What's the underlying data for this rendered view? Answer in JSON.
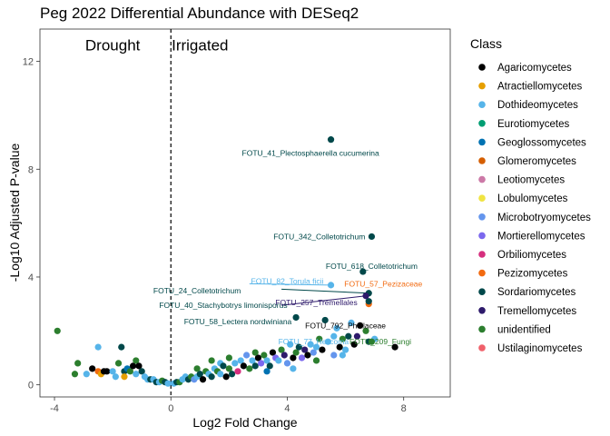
{
  "chart_data": {
    "type": "scatter",
    "title": "Peg 2022 Differential Abundance with DESeq2",
    "xlabel": "Log2 Fold Change",
    "ylabel": "-Log10 Adjusted P-value",
    "xlim": [
      -4.5,
      9.6
    ],
    "ylim": [
      -0.45,
      13.2
    ],
    "xticks": [
      -4,
      0,
      4,
      8
    ],
    "yticks": [
      0,
      4,
      8,
      12
    ],
    "vline_x": 0,
    "region_labels": [
      {
        "name": "drought",
        "text": "Drought",
        "x": -2,
        "y": 12.4
      },
      {
        "name": "irrigated",
        "text": "Irrigated",
        "x": 1,
        "y": 12.4
      }
    ],
    "legend": {
      "title": "Class",
      "entries": [
        {
          "name": "Agaricomycetes",
          "color": "#000000"
        },
        {
          "name": "Atractiellomycetes",
          "color": "#E69F00"
        },
        {
          "name": "Dothideomycetes",
          "color": "#56B4E9"
        },
        {
          "name": "Eurotiomycetes",
          "color": "#009E73"
        },
        {
          "name": "Geoglossomycetes",
          "color": "#0072B2"
        },
        {
          "name": "Glomeromycetes",
          "color": "#D55E00"
        },
        {
          "name": "Leotiomycetes",
          "color": "#CC79A7"
        },
        {
          "name": "Lobulomycetes",
          "color": "#F0E442"
        },
        {
          "name": "Microbotryomycetes",
          "color": "#6495ED"
        },
        {
          "name": "Mortierellomycetes",
          "color": "#7B68EE"
        },
        {
          "name": "Orbiliomycetes",
          "color": "#D62F7E"
        },
        {
          "name": "Pezizomycetes",
          "color": "#F26A10"
        },
        {
          "name": "Sordariomycetes",
          "color": "#00484A"
        },
        {
          "name": "Tremellomycetes",
          "color": "#2E1A6B"
        },
        {
          "name": "unidentified",
          "color": "#2C7E2E"
        },
        {
          "name": "Ustilaginomycetes",
          "color": "#F0606A"
        }
      ]
    },
    "labeled_points": [
      {
        "label": "FOTU_41_Plectosphaerella cucumerina",
        "class": "Sordariomycetes",
        "x": 5.5,
        "y": 9.1,
        "lx": 4.8,
        "ly": 8.6,
        "anchor": "middle",
        "color": "#00484A"
      },
      {
        "label": "FOTU_342_Colletotrichum",
        "class": "Sordariomycetes",
        "x": 6.9,
        "y": 5.5,
        "lx": 5.1,
        "ly": 5.5,
        "anchor": "middle",
        "color": "#00484A"
      },
      {
        "label": "FOTU_618_Colletotrichum",
        "class": "Sordariomycetes",
        "x": 6.6,
        "y": 4.2,
        "lx": 6.9,
        "ly": 4.4,
        "anchor": "middle",
        "color": "#00484A"
      },
      {
        "label": "FOTU_24_Colletotrichum",
        "class": "Sordariomycetes",
        "x": 6.8,
        "y": 3.4,
        "lx": 0.9,
        "ly": 3.5,
        "anchor": "middle",
        "color": "#00484A",
        "line_from": [
          3.8,
          3.55
        ]
      },
      {
        "label": "FOTU_82_Torula ficii",
        "class": "Dothideomycetes",
        "x": 5.5,
        "y": 3.7,
        "lx": 4.0,
        "ly": 3.85,
        "anchor": "middle",
        "color": "#56B4E9",
        "line_from": [
          2.7,
          3.75
        ]
      },
      {
        "label": "FOTU_57_Pezizaceae",
        "class": "Pezizomycetes",
        "x": 6.8,
        "y": 3.0,
        "lx": 7.3,
        "ly": 3.75,
        "anchor": "middle",
        "color": "#F26A10"
      },
      {
        "label": "FOTU_40_Stachybotrys limonisporus",
        "class": "Sordariomycetes",
        "x": 6.8,
        "y": 3.1,
        "lx": 1.8,
        "ly": 2.95,
        "anchor": "middle",
        "color": "#00484A"
      },
      {
        "label": "FOTU_257_Tremellales",
        "class": "Tremellomycetes",
        "x": 6.7,
        "y": 3.3,
        "lx": 5.0,
        "ly": 3.05,
        "anchor": "middle",
        "color": "#2E1A6B",
        "line_from": [
          3.8,
          2.95
        ]
      },
      {
        "label": "FOTU_58_Lectera nordwiniana",
        "class": "Sordariomycetes",
        "x": 4.3,
        "y": 2.5,
        "lx": 2.3,
        "ly": 2.35,
        "anchor": "middle",
        "color": "#00484A"
      },
      {
        "label": "FOTU_792_Phallaceae",
        "class": "Agaricomycetes",
        "x": 6.5,
        "y": 2.2,
        "lx": 6.0,
        "ly": 2.2,
        "anchor": "middle",
        "color": "#000000"
      },
      {
        "label": "FOTU_77_Helicoma",
        "class": "Dothideomycetes",
        "x": 5.6,
        "y": 1.8,
        "lx": 4.9,
        "ly": 1.6,
        "anchor": "middle",
        "color": "#56B4E9"
      },
      {
        "label": "FOTU_209_Fungi",
        "class": "unidentified",
        "x": 6.9,
        "y": 1.6,
        "lx": 7.2,
        "ly": 1.6,
        "anchor": "middle",
        "color": "#2C7E2E"
      }
    ],
    "points": [
      {
        "x": -3.9,
        "y": 2.0,
        "class": "unidentified"
      },
      {
        "x": -3.2,
        "y": 0.8,
        "class": "unidentified"
      },
      {
        "x": -3.3,
        "y": 0.4,
        "class": "unidentified"
      },
      {
        "x": -2.9,
        "y": 0.4,
        "class": "Dothideomycetes"
      },
      {
        "x": -2.7,
        "y": 0.6,
        "class": "Agaricomycetes"
      },
      {
        "x": -2.5,
        "y": 1.4,
        "class": "Dothideomycetes"
      },
      {
        "x": -2.5,
        "y": 0.5,
        "class": "Pezizomycetes"
      },
      {
        "x": -2.4,
        "y": 0.4,
        "class": "Atractiellomycetes"
      },
      {
        "x": -2.3,
        "y": 0.5,
        "class": "Agaricomycetes"
      },
      {
        "x": -2.2,
        "y": 0.5,
        "class": "Agaricomycetes"
      },
      {
        "x": -2.0,
        "y": 0.5,
        "class": "Dothideomycetes"
      },
      {
        "x": -1.9,
        "y": 0.3,
        "class": "Dothideomycetes"
      },
      {
        "x": -1.8,
        "y": 0.8,
        "class": "unidentified"
      },
      {
        "x": -1.7,
        "y": 1.4,
        "class": "Sordariomycetes"
      },
      {
        "x": -1.6,
        "y": 0.5,
        "class": "Sordariomycetes"
      },
      {
        "x": -1.6,
        "y": 0.3,
        "class": "Atractiellomycetes"
      },
      {
        "x": -1.5,
        "y": 0.6,
        "class": "Geoglossomycetes"
      },
      {
        "x": -1.4,
        "y": 0.5,
        "class": "unidentified"
      },
      {
        "x": -1.3,
        "y": 0.7,
        "class": "Agaricomycetes"
      },
      {
        "x": -1.2,
        "y": 0.9,
        "class": "unidentified"
      },
      {
        "x": -1.2,
        "y": 0.4,
        "class": "Dothideomycetes"
      },
      {
        "x": -1.1,
        "y": 0.7,
        "class": "Agaricomycetes"
      },
      {
        "x": -1.0,
        "y": 0.5,
        "class": "Sordariomycetes"
      },
      {
        "x": -0.9,
        "y": 0.3,
        "class": "Dothideomycetes"
      },
      {
        "x": -0.8,
        "y": 0.2,
        "class": "Dothideomycetes"
      },
      {
        "x": -0.7,
        "y": 0.2,
        "class": "Sordariomycetes"
      },
      {
        "x": -0.6,
        "y": 0.2,
        "class": "Dothideomycetes"
      },
      {
        "x": -0.5,
        "y": 0.1,
        "class": "Sordariomycetes"
      },
      {
        "x": -0.4,
        "y": 0.1,
        "class": "Dothideomycetes"
      },
      {
        "x": -0.3,
        "y": 0.15,
        "class": "unidentified"
      },
      {
        "x": -0.2,
        "y": 0.1,
        "class": "Sordariomycetes"
      },
      {
        "x": -0.1,
        "y": 0.05,
        "class": "Dothideomycetes"
      },
      {
        "x": 0.1,
        "y": 0.05,
        "class": "Dothideomycetes"
      },
      {
        "x": 0.2,
        "y": 0.1,
        "class": "Sordariomycetes"
      },
      {
        "x": 0.3,
        "y": 0.1,
        "class": "unidentified"
      },
      {
        "x": 0.4,
        "y": 0.2,
        "class": "Dothideomycetes"
      },
      {
        "x": 0.5,
        "y": 0.3,
        "class": "Dothideomycetes"
      },
      {
        "x": 0.6,
        "y": 0.2,
        "class": "Sordariomycetes"
      },
      {
        "x": 0.7,
        "y": 0.3,
        "class": "unidentified"
      },
      {
        "x": 0.8,
        "y": 0.2,
        "class": "Microbotryomycetes"
      },
      {
        "x": 0.9,
        "y": 0.3,
        "class": "Dothideomycetes"
      },
      {
        "x": 1.0,
        "y": 0.4,
        "class": "Sordariomycetes"
      },
      {
        "x": 1.1,
        "y": 0.2,
        "class": "Agaricomycetes"
      },
      {
        "x": 1.2,
        "y": 0.5,
        "class": "unidentified"
      },
      {
        "x": 1.3,
        "y": 0.4,
        "class": "Dothideomycetes"
      },
      {
        "x": 1.4,
        "y": 0.3,
        "class": "Sordariomycetes"
      },
      {
        "x": 1.5,
        "y": 0.6,
        "class": "Dothideomycetes"
      },
      {
        "x": 1.6,
        "y": 0.5,
        "class": "unidentified"
      },
      {
        "x": 1.7,
        "y": 0.8,
        "class": "Dothideomycetes"
      },
      {
        "x": 1.8,
        "y": 0.7,
        "class": "Sordariomycetes"
      },
      {
        "x": 1.9,
        "y": 0.3,
        "class": "Agaricomycetes"
      },
      {
        "x": 2.0,
        "y": 0.6,
        "class": "unidentified"
      },
      {
        "x": 2.1,
        "y": 0.4,
        "class": "Sordariomycetes"
      },
      {
        "x": 2.2,
        "y": 0.8,
        "class": "Dothideomycetes"
      },
      {
        "x": 2.3,
        "y": 0.5,
        "class": "Orbiliomycetes"
      },
      {
        "x": 2.4,
        "y": 0.9,
        "class": "Dothideomycetes"
      },
      {
        "x": 2.5,
        "y": 0.7,
        "class": "Agaricomycetes"
      },
      {
        "x": 2.6,
        "y": 1.1,
        "class": "Microbotryomycetes"
      },
      {
        "x": 2.7,
        "y": 0.6,
        "class": "unidentified"
      },
      {
        "x": 2.8,
        "y": 0.9,
        "class": "Dothideomycetes"
      },
      {
        "x": 2.9,
        "y": 0.7,
        "class": "Sordariomycetes"
      },
      {
        "x": 3.0,
        "y": 1.0,
        "class": "Agaricomycetes"
      },
      {
        "x": 3.1,
        "y": 0.8,
        "class": "Mortierellomycetes"
      },
      {
        "x": 3.2,
        "y": 1.1,
        "class": "unidentified"
      },
      {
        "x": 3.3,
        "y": 0.9,
        "class": "Dothideomycetes"
      },
      {
        "x": 3.4,
        "y": 0.7,
        "class": "Sordariomycetes"
      },
      {
        "x": 3.5,
        "y": 1.2,
        "class": "Agaricomycetes"
      },
      {
        "x": 3.6,
        "y": 1.0,
        "class": "Mortierellomycetes"
      },
      {
        "x": 3.7,
        "y": 0.9,
        "class": "Dothideomycetes"
      },
      {
        "x": 3.8,
        "y": 1.3,
        "class": "unidentified"
      },
      {
        "x": 3.9,
        "y": 1.1,
        "class": "Tremellomycetes"
      },
      {
        "x": 4.0,
        "y": 0.8,
        "class": "Microbotryomycetes"
      },
      {
        "x": 4.1,
        "y": 1.5,
        "class": "Dothideomycetes"
      },
      {
        "x": 4.2,
        "y": 1.0,
        "class": "Agaricomycetes"
      },
      {
        "x": 4.3,
        "y": 1.2,
        "class": "unidentified"
      },
      {
        "x": 4.4,
        "y": 1.4,
        "class": "Sordariomycetes"
      },
      {
        "x": 4.5,
        "y": 1.0,
        "class": "Mortierellomycetes"
      },
      {
        "x": 4.6,
        "y": 1.3,
        "class": "Tremellomycetes"
      },
      {
        "x": 4.7,
        "y": 1.1,
        "class": "Agaricomycetes"
      },
      {
        "x": 4.8,
        "y": 1.5,
        "class": "Dothideomycetes"
      },
      {
        "x": 4.9,
        "y": 1.2,
        "class": "Microbotryomycetes"
      },
      {
        "x": 5.0,
        "y": 1.4,
        "class": "Dothideomycetes"
      },
      {
        "x": 5.1,
        "y": 1.7,
        "class": "unidentified"
      },
      {
        "x": 5.2,
        "y": 1.3,
        "class": "Agaricomycetes"
      },
      {
        "x": 5.3,
        "y": 2.4,
        "class": "Sordariomycetes"
      },
      {
        "x": 5.4,
        "y": 1.6,
        "class": "Dothideomycetes"
      },
      {
        "x": 5.6,
        "y": 1.1,
        "class": "Microbotryomycetes"
      },
      {
        "x": 5.7,
        "y": 2.1,
        "class": "Dothideomycetes"
      },
      {
        "x": 5.8,
        "y": 1.4,
        "class": "Agaricomycetes"
      },
      {
        "x": 5.9,
        "y": 1.7,
        "class": "unidentified"
      },
      {
        "x": 6.0,
        "y": 1.3,
        "class": "Dothideomycetes"
      },
      {
        "x": 6.1,
        "y": 1.8,
        "class": "Sordariomycetes"
      },
      {
        "x": 6.2,
        "y": 2.3,
        "class": "Dothideomycetes"
      },
      {
        "x": 6.3,
        "y": 1.5,
        "class": "Agaricomycetes"
      },
      {
        "x": 6.4,
        "y": 1.8,
        "class": "Tremellomycetes"
      },
      {
        "x": 6.7,
        "y": 2.0,
        "class": "unidentified"
      },
      {
        "x": 6.8,
        "y": 1.6,
        "class": "Sordariomycetes"
      },
      {
        "x": 7.0,
        "y": 1.7,
        "class": "Dothideomycetes"
      },
      {
        "x": 7.7,
        "y": 1.4,
        "class": "Agaricomycetes"
      },
      {
        "x": 1.4,
        "y": 0.9,
        "class": "unidentified"
      },
      {
        "x": 2.0,
        "y": 1.0,
        "class": "unidentified"
      },
      {
        "x": 2.9,
        "y": 1.2,
        "class": "unidentified"
      },
      {
        "x": 0.9,
        "y": 0.6,
        "class": "unidentified"
      },
      {
        "x": 1.7,
        "y": 0.4,
        "class": "Dothideomycetes"
      },
      {
        "x": 3.3,
        "y": 0.5,
        "class": "Geoglossomycetes"
      },
      {
        "x": 4.2,
        "y": 0.6,
        "class": "Dothideomycetes"
      },
      {
        "x": 5.0,
        "y": 0.9,
        "class": "unidentified"
      },
      {
        "x": 5.9,
        "y": 1.1,
        "class": "Dothideomycetes"
      }
    ]
  }
}
